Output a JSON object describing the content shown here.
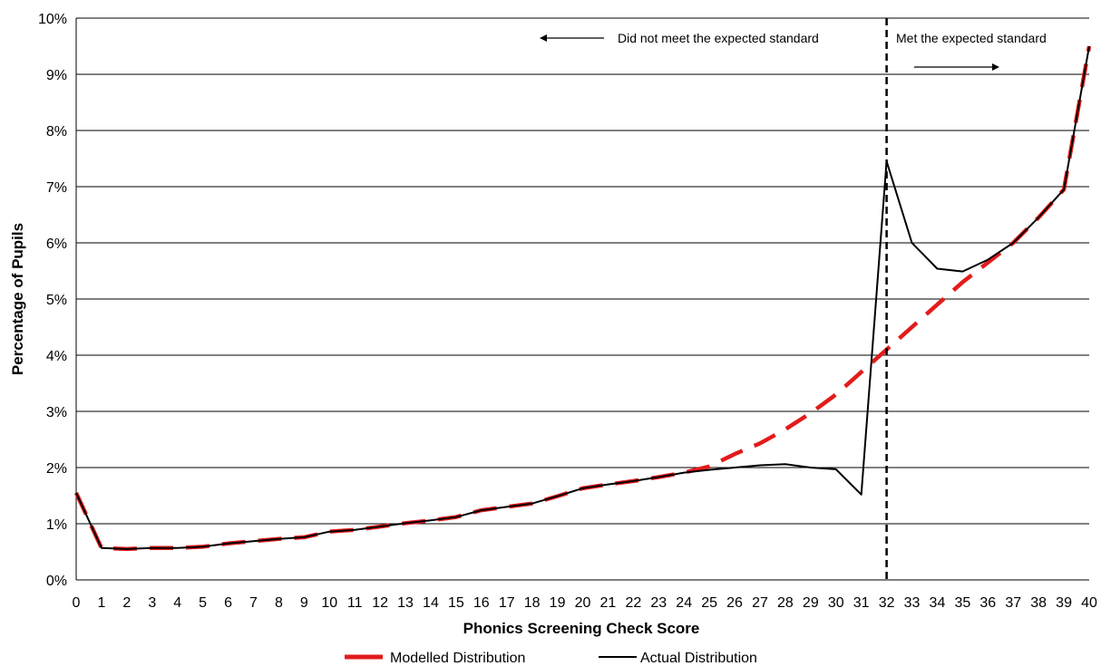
{
  "chart_data": {
    "type": "line",
    "xlabel": "Phonics Screening Check Score",
    "ylabel": "Percentage of Pupils",
    "x": [
      0,
      1,
      2,
      3,
      4,
      5,
      6,
      7,
      8,
      9,
      10,
      11,
      12,
      13,
      14,
      15,
      16,
      17,
      18,
      19,
      20,
      21,
      22,
      23,
      24,
      25,
      26,
      27,
      28,
      29,
      30,
      31,
      32,
      33,
      34,
      35,
      36,
      37,
      38,
      39,
      40
    ],
    "xlim": [
      0,
      40
    ],
    "ylim": [
      0,
      10
    ],
    "y_ticks": [
      "0%",
      "1%",
      "2%",
      "3%",
      "4%",
      "5%",
      "6%",
      "7%",
      "8%",
      "9%",
      "10%"
    ],
    "x_ticks": [
      "0",
      "1",
      "2",
      "3",
      "4",
      "5",
      "6",
      "7",
      "8",
      "9",
      "10",
      "11",
      "12",
      "13",
      "14",
      "15",
      "16",
      "17",
      "18",
      "19",
      "20",
      "21",
      "22",
      "23",
      "24",
      "25",
      "26",
      "27",
      "28",
      "29",
      "30",
      "31",
      "32",
      "33",
      "34",
      "35",
      "36",
      "37",
      "38",
      "39",
      "40"
    ],
    "grid": "horizontal",
    "legend_position": "bottom",
    "series": [
      {
        "name": "Modelled Distribution",
        "color": "#e31b1b",
        "style": "dashed",
        "values": [
          1.55,
          0.57,
          0.55,
          0.57,
          0.57,
          0.59,
          0.65,
          0.69,
          0.73,
          0.76,
          0.86,
          0.89,
          0.95,
          1.01,
          1.06,
          1.12,
          1.24,
          1.3,
          1.36,
          1.49,
          1.63,
          1.7,
          1.76,
          1.83,
          1.91,
          2.02,
          2.24,
          2.43,
          2.68,
          2.97,
          3.3,
          3.7,
          4.1,
          4.5,
          4.9,
          5.3,
          5.65,
          6.0,
          6.45,
          6.95,
          9.5
        ]
      },
      {
        "name": "Actual Distribution",
        "color": "#000000",
        "style": "solid",
        "values": [
          1.55,
          0.57,
          0.55,
          0.57,
          0.57,
          0.59,
          0.65,
          0.69,
          0.73,
          0.76,
          0.86,
          0.89,
          0.95,
          1.01,
          1.06,
          1.12,
          1.24,
          1.3,
          1.36,
          1.49,
          1.63,
          1.7,
          1.76,
          1.83,
          1.91,
          1.96,
          2.0,
          2.04,
          2.06,
          2.0,
          1.97,
          1.52,
          7.45,
          6.0,
          5.54,
          5.49,
          5.7,
          6.0,
          6.45,
          6.95,
          9.5
        ]
      }
    ],
    "threshold": {
      "x": 32,
      "style": "dashed",
      "color": "#000000"
    },
    "annotations": {
      "below": "Did not meet the expected standard",
      "above": "Met the expected standard"
    }
  }
}
